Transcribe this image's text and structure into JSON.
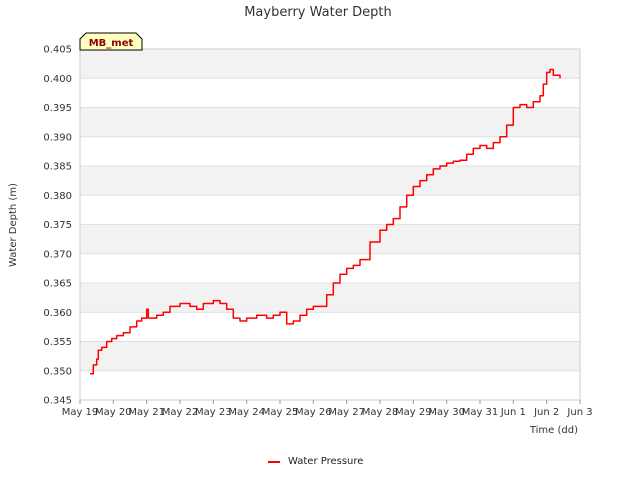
{
  "chart_data": {
    "type": "line",
    "title": "Mayberry Water Depth",
    "xlabel": "Time (dd)",
    "ylabel": "Water Depth (m)",
    "badge": "MB_met",
    "x_tick_labels": [
      "May 19",
      "May 20",
      "May 21",
      "May 22",
      "May 23",
      "May 24",
      "May 25",
      "May 26",
      "May 27",
      "May 28",
      "May 29",
      "May 30",
      "May 31",
      "Jun 1",
      "Jun 2",
      "Jun 3"
    ],
    "xlim": [
      0,
      15
    ],
    "ylim": [
      0.345,
      0.405
    ],
    "y_ticks": [
      0.345,
      0.35,
      0.355,
      0.36,
      0.365,
      0.37,
      0.375,
      0.38,
      0.385,
      0.39,
      0.395,
      0.4,
      0.405
    ],
    "grid": true,
    "legend_position": "bottom-center",
    "colors": {
      "series": "#ff0000",
      "band": "#f2f2f2",
      "badge_bg": "#ffffc0"
    },
    "series": [
      {
        "name": "Water Pressure",
        "x_unit": "days since May 19",
        "x": [
          0.3,
          0.4,
          0.5,
          0.55,
          0.65,
          0.8,
          0.95,
          1.1,
          1.3,
          1.5,
          1.7,
          1.85,
          2.0,
          2.05,
          2.3,
          2.5,
          2.7,
          3.0,
          3.3,
          3.5,
          3.7,
          4.0,
          4.2,
          4.4,
          4.6,
          4.8,
          5.0,
          5.3,
          5.6,
          5.8,
          6.0,
          6.2,
          6.4,
          6.6,
          6.8,
          7.0,
          7.2,
          7.4,
          7.6,
          7.8,
          8.0,
          8.2,
          8.4,
          8.7,
          9.0,
          9.2,
          9.4,
          9.6,
          9.8,
          10.0,
          10.2,
          10.4,
          10.6,
          10.8,
          11.0,
          11.2,
          11.4,
          11.6,
          11.8,
          12.0,
          12.2,
          12.4,
          12.6,
          12.8,
          13.0,
          13.2,
          13.4,
          13.6,
          13.8,
          13.9,
          14.0,
          14.1,
          14.2,
          14.4
        ],
        "y": [
          0.3495,
          0.351,
          0.352,
          0.3535,
          0.354,
          0.355,
          0.3555,
          0.356,
          0.3565,
          0.3575,
          0.3585,
          0.359,
          0.3605,
          0.359,
          0.3595,
          0.36,
          0.361,
          0.3615,
          0.361,
          0.3605,
          0.3615,
          0.362,
          0.3615,
          0.3605,
          0.359,
          0.3585,
          0.359,
          0.3595,
          0.359,
          0.3595,
          0.36,
          0.358,
          0.3585,
          0.3595,
          0.3605,
          0.361,
          0.361,
          0.363,
          0.365,
          0.3665,
          0.3675,
          0.368,
          0.369,
          0.372,
          0.374,
          0.375,
          0.376,
          0.378,
          0.38,
          0.3815,
          0.3825,
          0.3835,
          0.3845,
          0.385,
          0.3855,
          0.3858,
          0.386,
          0.387,
          0.388,
          0.3885,
          0.388,
          0.389,
          0.39,
          0.392,
          0.395,
          0.3955,
          0.395,
          0.396,
          0.397,
          0.399,
          0.401,
          0.4015,
          0.4005,
          0.4
        ]
      }
    ]
  }
}
